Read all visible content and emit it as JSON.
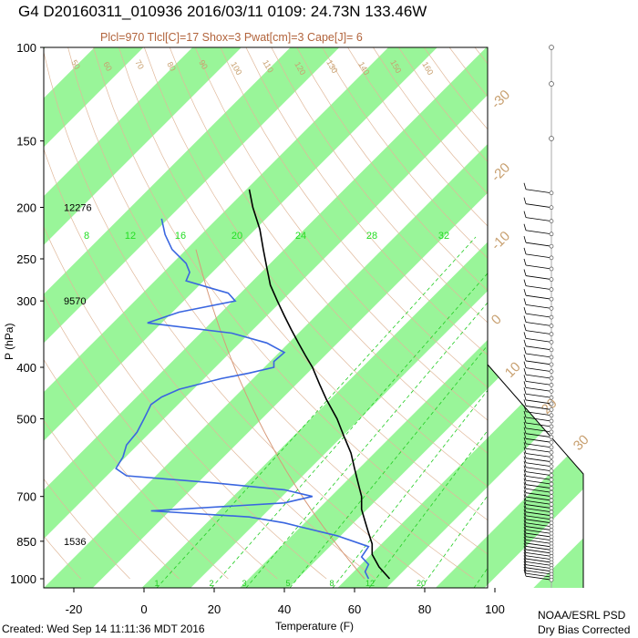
{
  "header": {
    "title": "G4 D20160311_010936 2016/03/11 0109: 24.73N 133.46W",
    "subtitle": "Plcl=970 Tlcl[C]=17 Shox=3 Pwat[cm]=3 Cape[J]= 6"
  },
  "footer": {
    "created": "Created: Wed Sep 14 11:11:36 MDT 2016",
    "credit_line1": "NOAA/ESRL PSD",
    "credit_line2": "Dry Bias Corrected"
  },
  "colors": {
    "temperature": "#000000",
    "dewpoint": "#3a66e0",
    "band": "#99f599",
    "isotherm_label": "#c8a070",
    "dry_adiabat": "#e0b89a",
    "mixing_ratio": "#22cc22",
    "subtitle": "#b2643c"
  },
  "chart_data": {
    "type": "skew-t",
    "title": "G4 D20160311_010936 2016/03/11 0109: 24.73N 133.46W",
    "subtitle": "Plcl=970 Tlcl[C]=17 Shox=3 Pwat[cm]=3 Cape[J]= 6",
    "xlabel": "Temperature (F)",
    "ylabel": "P (hPa)",
    "x_ticks": [
      -20,
      0,
      20,
      40,
      60,
      80,
      100
    ],
    "x_tick_labels": [
      "-20",
      "0",
      "20",
      "40",
      "60",
      "80",
      "100"
    ],
    "y_scale": "log",
    "y_ticks": [
      100,
      150,
      200,
      250,
      300,
      400,
      500,
      700,
      850,
      1000
    ],
    "y_tick_labels": [
      "100",
      "150",
      "200",
      "250",
      "300",
      "400",
      "500",
      "700",
      "850",
      "1000"
    ],
    "xlim": [
      -29,
      100
    ],
    "ylim": [
      1000,
      100
    ],
    "isotherm_labels": [
      "-30",
      "-20",
      "-10",
      "0",
      "10",
      "20",
      "30"
    ],
    "mixing_ratio_labels": [
      "8",
      "12",
      "16",
      "20",
      "24",
      "28",
      "32"
    ],
    "mixing_ratio_bottom_labels": [
      "1",
      "2",
      "3",
      "5",
      "8",
      "12",
      "20"
    ],
    "dry_adiabat_labels": [
      "50",
      "60",
      "70",
      "80",
      "90",
      "100",
      "110",
      "120",
      "130",
      "140",
      "150",
      "160"
    ],
    "height_labels": [
      {
        "p": 200,
        "text": "12276"
      },
      {
        "p": 300,
        "text": "9570"
      },
      {
        "p": 850,
        "text": "1536"
      }
    ],
    "series": [
      {
        "name": "temperature",
        "points": [
          [
            185,
            30
          ],
          [
            200,
            31
          ],
          [
            220,
            33
          ],
          [
            240,
            34
          ],
          [
            260,
            35
          ],
          [
            280,
            36
          ],
          [
            300,
            38
          ],
          [
            320,
            40
          ],
          [
            340,
            42
          ],
          [
            360,
            44
          ],
          [
            380,
            46
          ],
          [
            400,
            48
          ],
          [
            430,
            50
          ],
          [
            460,
            52
          ],
          [
            500,
            55
          ],
          [
            540,
            57
          ],
          [
            580,
            59
          ],
          [
            620,
            60
          ],
          [
            660,
            61
          ],
          [
            700,
            62
          ],
          [
            740,
            62
          ],
          [
            780,
            63
          ],
          [
            820,
            64
          ],
          [
            860,
            65
          ],
          [
            900,
            65
          ],
          [
            950,
            67
          ],
          [
            1000,
            70
          ]
        ]
      },
      {
        "name": "dewpoint",
        "points": [
          [
            210,
            5
          ],
          [
            225,
            6
          ],
          [
            240,
            8
          ],
          [
            255,
            12
          ],
          [
            265,
            13
          ],
          [
            275,
            12
          ],
          [
            285,
            20
          ],
          [
            290,
            24
          ],
          [
            300,
            26
          ],
          [
            315,
            10
          ],
          [
            330,
            1
          ],
          [
            345,
            25
          ],
          [
            360,
            35
          ],
          [
            375,
            40
          ],
          [
            390,
            37
          ],
          [
            400,
            37
          ],
          [
            410,
            30
          ],
          [
            420,
            22
          ],
          [
            440,
            10
          ],
          [
            455,
            5
          ],
          [
            470,
            2
          ],
          [
            485,
            1
          ],
          [
            500,
            0
          ],
          [
            530,
            -2
          ],
          [
            560,
            -5
          ],
          [
            590,
            -6
          ],
          [
            620,
            -8
          ],
          [
            640,
            -5
          ],
          [
            660,
            20
          ],
          [
            680,
            40
          ],
          [
            700,
            48
          ],
          [
            720,
            40
          ],
          [
            745,
            2
          ],
          [
            765,
            30
          ],
          [
            785,
            40
          ],
          [
            800,
            45
          ],
          [
            830,
            55
          ],
          [
            870,
            64
          ],
          [
            910,
            62
          ],
          [
            940,
            64
          ],
          [
            970,
            63
          ],
          [
            1000,
            64
          ]
        ]
      }
    ],
    "wind_barbs": "profile on right side from about 185 hPa to 1000 hPa"
  }
}
